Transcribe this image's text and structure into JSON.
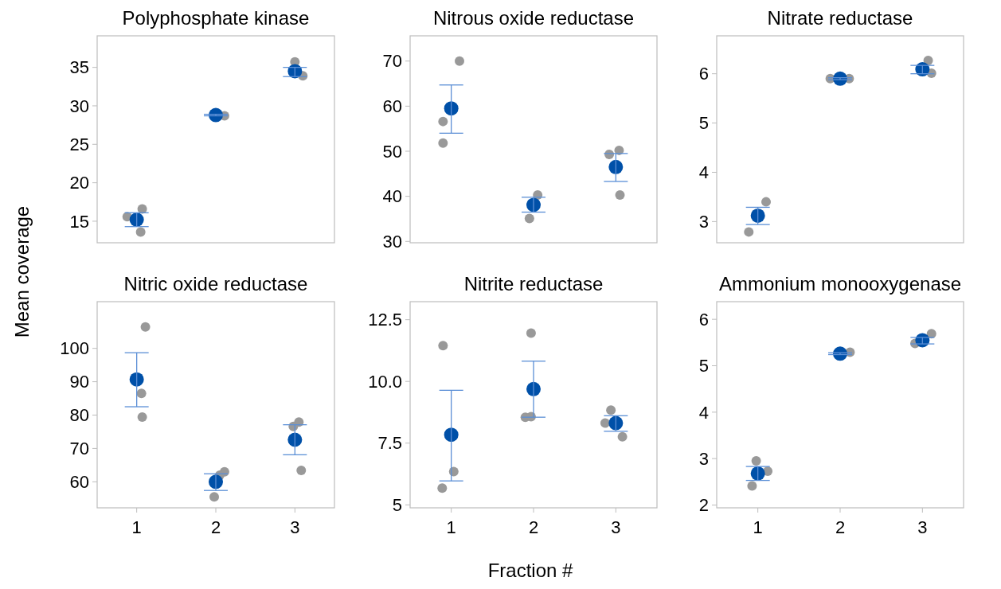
{
  "chart_data": [
    {
      "type": "scatter",
      "title": "Polyphosphate kinase",
      "ylabel": "Mean coverage",
      "xlim": [
        0.5,
        3.5
      ],
      "xticks": [
        1,
        2,
        3
      ],
      "ylim": [
        12.2,
        39.1
      ],
      "yticks": [
        15,
        20,
        25,
        30,
        35
      ],
      "tick_labels": "y",
      "marker": "circle",
      "grid": false,
      "series": [
        {
          "color": "#999999",
          "x": [
            0.88,
            1.07,
            1.05,
            2.11,
            3.0,
            3.1
          ],
          "values": [
            15.6,
            16.6,
            13.6,
            28.7,
            35.7,
            33.9
          ]
        },
        {
          "color": "#0050a8",
          "x": [
            1,
            2,
            3
          ],
          "values": [
            15.2,
            28.8,
            34.5
          ],
          "errors": [
            [
              14.3,
              16.1
            ],
            [
              28.7,
              28.9
            ],
            [
              33.8,
              35.0
            ]
          ]
        }
      ]
    },
    {
      "type": "scatter",
      "title": "Nitrous oxide reductase",
      "xlim": [
        0.5,
        3.5
      ],
      "xticks": [
        1,
        2,
        3
      ],
      "ylim": [
        29.7,
        75.6
      ],
      "yticks": [
        30,
        40,
        50,
        60,
        70
      ],
      "tick_labels": "y",
      "marker": "circle",
      "grid": false,
      "series": [
        {
          "color": "#999999",
          "x": [
            1.1,
            0.9,
            0.9,
            2.05,
            1.95,
            2.92,
            3.04,
            3.05
          ],
          "values": [
            70.0,
            56.6,
            51.8,
            40.3,
            35.1,
            49.3,
            50.2,
            40.3
          ]
        },
        {
          "color": "#0050a8",
          "x": [
            1,
            2,
            3
          ],
          "values": [
            59.5,
            38.1,
            46.5
          ],
          "errors": [
            [
              54.0,
              64.7
            ],
            [
              36.5,
              39.8
            ],
            [
              43.3,
              49.5
            ]
          ]
        }
      ]
    },
    {
      "type": "scatter",
      "title": "Nitrate reductase",
      "xlim": [
        0.5,
        3.5
      ],
      "xticks": [
        1,
        2,
        3
      ],
      "ylim": [
        2.57,
        6.77
      ],
      "yticks": [
        3,
        4,
        5,
        6
      ],
      "tick_labels": "y",
      "marker": "circle",
      "grid": false,
      "series": [
        {
          "color": "#999999",
          "x": [
            0.89,
            1.1,
            1.88,
            2.11,
            3.07,
            3.11
          ],
          "values": [
            2.79,
            3.4,
            5.9,
            5.9,
            6.27,
            6.01
          ]
        },
        {
          "color": "#0050a8",
          "x": [
            1,
            2,
            3
          ],
          "values": [
            3.12,
            5.9,
            6.09
          ],
          "errors": [
            [
              2.94,
              3.29
            ],
            [
              5.88,
              5.92
            ],
            [
              6.0,
              6.17
            ]
          ]
        }
      ]
    },
    {
      "type": "scatter",
      "title": "Nitric oxide reductase",
      "xlim": [
        0.5,
        3.5
      ],
      "xticks": [
        1,
        2,
        3
      ],
      "ylim": [
        52.2,
        114
      ],
      "yticks": [
        60,
        70,
        80,
        90,
        100
      ],
      "marker": "circle",
      "grid": false,
      "series": [
        {
          "color": "#999999",
          "x": [
            1.11,
            1.06,
            1.07,
            2.11,
            1.98,
            2.05,
            3.05,
            2.98,
            3.08
          ],
          "values": [
            106.4,
            86.5,
            79.4,
            63.0,
            55.5,
            62.0,
            77.9,
            76.6,
            63.4
          ]
        },
        {
          "color": "#0050a8",
          "x": [
            1,
            2,
            3
          ],
          "values": [
            90.7,
            60.0,
            72.6
          ],
          "errors": [
            [
              82.5,
              98.7
            ],
            [
              57.4,
              62.4
            ],
            [
              68.1,
              77.1
            ]
          ]
        }
      ]
    },
    {
      "type": "scatter",
      "title": "Nitrite reductase",
      "xlabel": "Fraction #",
      "xlim": [
        0.5,
        3.5
      ],
      "xticks": [
        1,
        2,
        3
      ],
      "ylim": [
        4.88,
        13.23
      ],
      "yticks": [
        5,
        7.5,
        {
          "value": 10,
          "label": "10.0"
        },
        12.5
      ],
      "marker": "circle",
      "grid": false,
      "series": [
        {
          "color": "#999999",
          "x": [
            0.9,
            1.03,
            0.89,
            1.97,
            1.9,
            1.97,
            2.94,
            2.87,
            3.08
          ],
          "values": [
            11.45,
            6.35,
            5.68,
            11.96,
            8.55,
            8.57,
            8.84,
            8.31,
            7.76
          ]
        },
        {
          "color": "#0050a8",
          "x": [
            1,
            2,
            3
          ],
          "values": [
            7.84,
            9.69,
            8.31
          ],
          "errors": [
            [
              5.97,
              9.64
            ],
            [
              8.55,
              10.82
            ],
            [
              7.98,
              8.61
            ]
          ]
        }
      ]
    },
    {
      "type": "scatter",
      "title": "Ammonium monooxygenase",
      "xlim": [
        0.5,
        3.5
      ],
      "xticks": [
        1,
        2,
        3
      ],
      "ylim": [
        1.94,
        6.38
      ],
      "yticks": [
        2,
        3,
        4,
        5,
        6
      ],
      "marker": "circle",
      "grid": false,
      "series": [
        {
          "color": "#999999",
          "x": [
            0.98,
            1.12,
            0.93,
            2.12,
            3.11,
            2.91
          ],
          "values": [
            2.95,
            2.73,
            2.41,
            5.29,
            5.69,
            5.48
          ]
        },
        {
          "color": "#0050a8",
          "x": [
            1,
            2,
            3
          ],
          "values": [
            2.68,
            5.26,
            5.55
          ],
          "errors": [
            [
              2.53,
              2.83
            ],
            [
              5.24,
              5.28
            ],
            [
              5.47,
              5.61
            ]
          ]
        }
      ]
    }
  ]
}
